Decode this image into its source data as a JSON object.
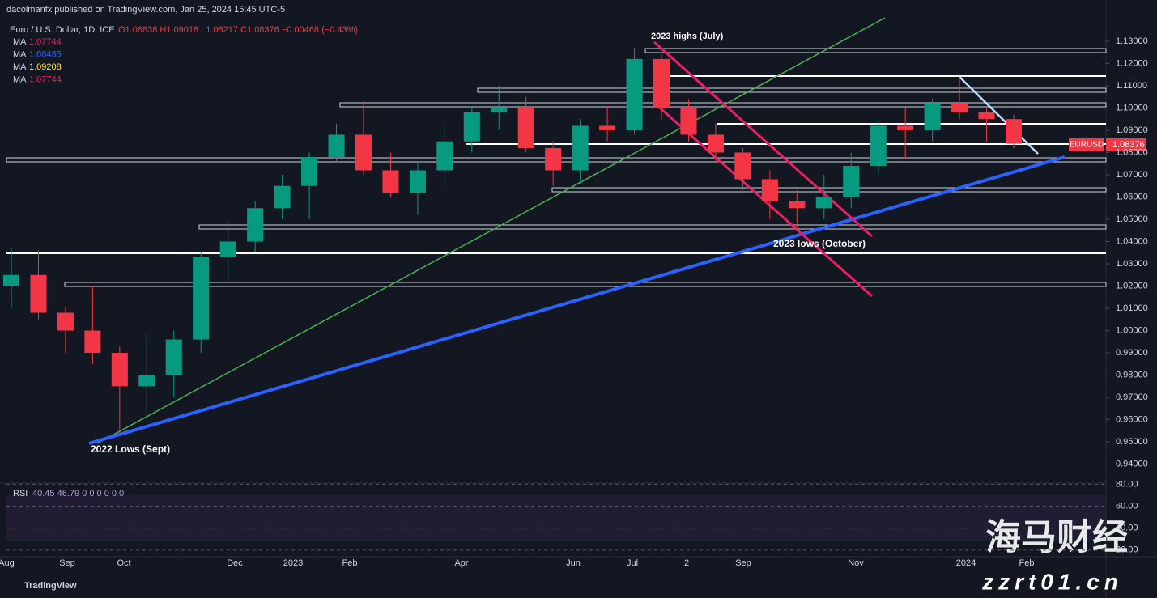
{
  "header": {
    "publisher": "dacolmanfx published on TradingView.com, Jan 25, 2024 15:45 UTC-5",
    "footer": "TradingView"
  },
  "chart_data": {
    "type": "candlestick",
    "title": "Euro / U.S. Dollar, 1D, ICE",
    "quote": "O1.08838 H1.09018 L1.08217 C1.08376 −0.00468 (−0.43%)",
    "moving_averages": [
      {
        "name": "MA",
        "label": "1.07744",
        "color": "#e91e63"
      },
      {
        "name": "MA",
        "label": "1.08435",
        "color": "#2962ff"
      },
      {
        "name": "MA",
        "label": "1.09208",
        "color": "#ffeb3b"
      },
      {
        "name": "MA",
        "label": "1.07744",
        "color": "#e91e63"
      }
    ],
    "annotations": [
      "2023 highs (July)",
      "2023 lows (October)",
      "2022 Lows (Sept)"
    ],
    "price_tag": {
      "name": "EURUSD",
      "label": "1.08376"
    },
    "up_color": "#089981",
    "down_color": "#f23645",
    "open": [
      1.02,
      1.025,
      1.008,
      1.0,
      0.99,
      0.975,
      0.98,
      0.996,
      1.033,
      1.04,
      1.055,
      1.065,
      1.078,
      1.088,
      1.072,
      1.062,
      1.072,
      1.085,
      1.098,
      1.1,
      1.082,
      1.072,
      1.092,
      1.09,
      1.122,
      1.1,
      1.088,
      1.08,
      1.068,
      1.058,
      1.055,
      1.06,
      1.074,
      1.092,
      1.09,
      1.102,
      1.098,
      1.095
    ],
    "high": [
      1.037,
      1.036,
      1.011,
      1.02,
      0.993,
      0.999,
      1.0,
      1.035,
      1.049,
      1.058,
      1.07,
      1.08,
      1.093,
      1.103,
      1.08,
      1.075,
      1.093,
      1.1,
      1.11,
      1.105,
      1.085,
      1.095,
      1.101,
      1.127,
      1.124,
      1.104,
      1.093,
      1.082,
      1.072,
      1.063,
      1.07,
      1.08,
      1.095,
      1.1,
      1.104,
      1.114,
      1.1,
      1.097
    ],
    "low": [
      1.01,
      1.005,
      0.99,
      0.985,
      0.954,
      0.962,
      0.97,
      0.99,
      1.022,
      1.035,
      1.05,
      1.05,
      1.075,
      1.07,
      1.06,
      1.052,
      1.065,
      1.08,
      1.09,
      1.08,
      1.065,
      1.066,
      1.085,
      1.088,
      1.095,
      1.085,
      1.075,
      1.063,
      1.05,
      1.045,
      1.05,
      1.055,
      1.07,
      1.077,
      1.085,
      1.095,
      1.085,
      1.082
    ],
    "close": [
      1.025,
      1.008,
      1.0,
      0.99,
      0.975,
      0.98,
      0.996,
      1.033,
      1.04,
      1.055,
      1.065,
      1.078,
      1.088,
      1.072,
      1.062,
      1.072,
      1.085,
      1.098,
      1.1,
      1.082,
      1.072,
      1.092,
      1.09,
      1.122,
      1.1,
      1.088,
      1.08,
      1.068,
      1.058,
      1.055,
      1.06,
      1.074,
      1.092,
      1.09,
      1.102,
      1.098,
      1.095,
      1.084
    ],
    "ylim": [
      0.9315,
      1.1485
    ],
    "yticks": [
      {
        "value": 0.94,
        "label": "0.94000"
      },
      {
        "value": 0.95,
        "label": "0.95000"
      },
      {
        "value": 0.96,
        "label": "0.96000"
      },
      {
        "value": 0.97,
        "label": "0.97000"
      },
      {
        "value": 0.98,
        "label": "0.98000"
      },
      {
        "value": 0.99,
        "label": "0.99000"
      },
      {
        "value": 1.0,
        "label": "1.00000"
      },
      {
        "value": 1.01,
        "label": "1.01000"
      },
      {
        "value": 1.02,
        "label": "1.02000"
      },
      {
        "value": 1.03,
        "label": "1.03000"
      },
      {
        "value": 1.04,
        "label": "1.04000"
      },
      {
        "value": 1.05,
        "label": "1.05000"
      },
      {
        "value": 1.06,
        "label": "1.06000"
      },
      {
        "value": 1.07,
        "label": "1.07000"
      },
      {
        "value": 1.08,
        "label": "1.08000"
      },
      {
        "value": 1.09,
        "label": "1.09000"
      },
      {
        "value": 1.1,
        "label": "1.10000"
      },
      {
        "value": 1.11,
        "label": "1.11000"
      },
      {
        "value": 1.12,
        "label": "1.12000"
      },
      {
        "value": 1.13,
        "label": "1.13000"
      }
    ],
    "time_labels": [
      "Aug",
      "Sep",
      "Oct",
      "Dec",
      "2023",
      "Feb",
      "Apr",
      "Jun",
      "Jul",
      "2",
      "Sep",
      "Nov",
      "2024",
      "Feb"
    ],
    "rsi": {
      "name": "RSI",
      "label": "40.45 46.79 0 0 0 0 0 0",
      "ylim": [
        12.5,
        81
      ],
      "yticks": [
        {
          "value": 80,
          "label": "80.00"
        },
        {
          "value": 60,
          "label": "60.00"
        },
        {
          "value": 40,
          "label": "40.00"
        },
        {
          "value": 20,
          "label": "20.00"
        }
      ]
    }
  },
  "watermark": {
    "title": "海马财经",
    "site": "zzrt01.cn"
  }
}
